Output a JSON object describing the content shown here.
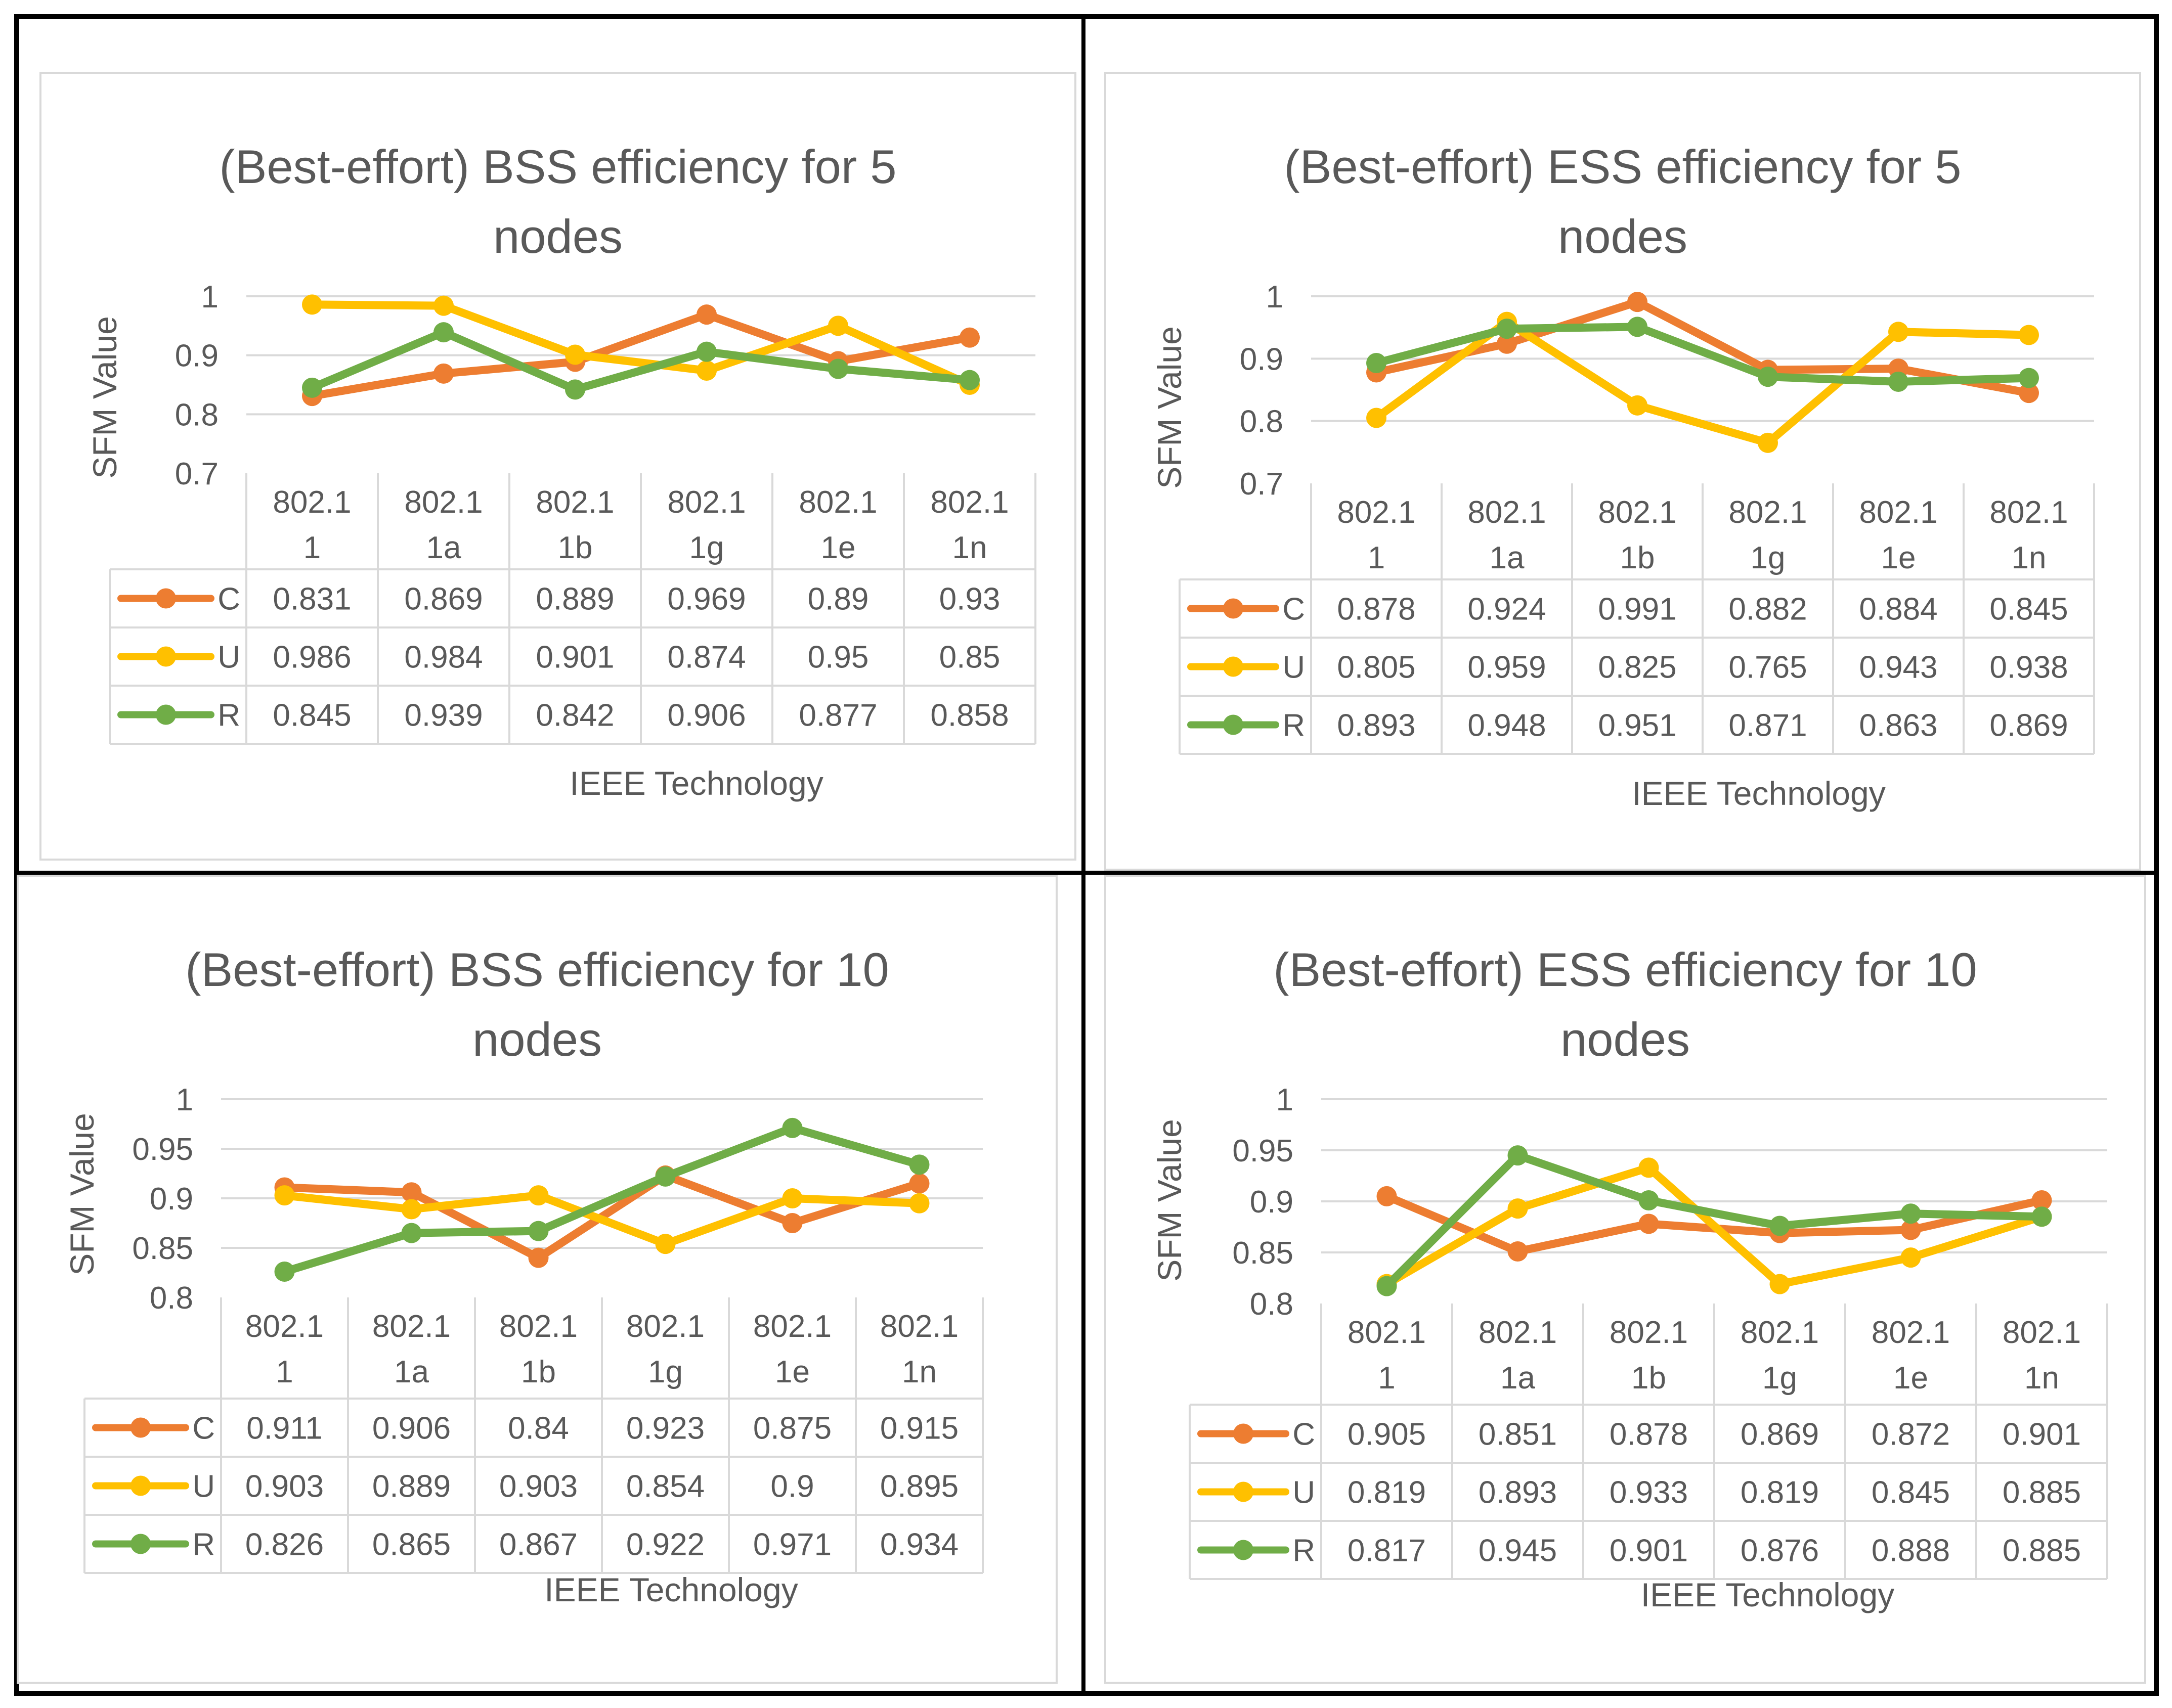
{
  "colors": {
    "C": "#ED7D31",
    "U": "#FFC000",
    "R": "#70AD47",
    "grid": "#D9D9D9",
    "text": "#595959"
  },
  "chart_data": [
    {
      "type": "line",
      "title_lines": [
        "(Best-effort) BSS efficiency for 5",
        "nodes"
      ],
      "xlabel": "IEEE Technology",
      "ylabel": "SFM Value",
      "categories": [
        [
          "802.1",
          "1"
        ],
        [
          "802.1",
          "1a"
        ],
        [
          "802.1",
          "1b"
        ],
        [
          "802.1",
          "1g"
        ],
        [
          "802.1",
          "1e"
        ],
        [
          "802.1",
          "1n"
        ]
      ],
      "ylim": [
        0.7,
        1
      ],
      "yticks": [
        "0.7",
        "0.8",
        "0.9",
        "1"
      ],
      "series": [
        {
          "name": "C",
          "values": [
            "0.831",
            "0.869",
            "0.889",
            "0.969",
            "0.89",
            "0.93"
          ]
        },
        {
          "name": "U",
          "values": [
            "0.986",
            "0.984",
            "0.901",
            "0.874",
            "0.95",
            "0.85"
          ]
        },
        {
          "name": "R",
          "values": [
            "0.845",
            "0.939",
            "0.842",
            "0.906",
            "0.877",
            "0.858"
          ]
        }
      ]
    },
    {
      "type": "line",
      "title_lines": [
        "(Best-effort) ESS efficiency for 5",
        "nodes"
      ],
      "xlabel": "IEEE Technology",
      "ylabel": "SFM Value",
      "categories": [
        [
          "802.1",
          "1"
        ],
        [
          "802.1",
          "1a"
        ],
        [
          "802.1",
          "1b"
        ],
        [
          "802.1",
          "1g"
        ],
        [
          "802.1",
          "1e"
        ],
        [
          "802.1",
          "1n"
        ]
      ],
      "ylim": [
        0.7,
        1
      ],
      "yticks": [
        "0.7",
        "0.8",
        "0.9",
        "1"
      ],
      "series": [
        {
          "name": "C",
          "values": [
            "0.878",
            "0.924",
            "0.991",
            "0.882",
            "0.884",
            "0.845"
          ]
        },
        {
          "name": "U",
          "values": [
            "0.805",
            "0.959",
            "0.825",
            "0.765",
            "0.943",
            "0.938"
          ]
        },
        {
          "name": "R",
          "values": [
            "0.893",
            "0.948",
            "0.951",
            "0.871",
            "0.863",
            "0.869"
          ]
        }
      ]
    },
    {
      "type": "line",
      "title_lines": [
        "(Best-effort) BSS efficiency for 10",
        "nodes"
      ],
      "xlabel": "IEEE Technology",
      "ylabel": "SFM Value",
      "categories": [
        [
          "802.1",
          "1"
        ],
        [
          "802.1",
          "1a"
        ],
        [
          "802.1",
          "1b"
        ],
        [
          "802.1",
          "1g"
        ],
        [
          "802.1",
          "1e"
        ],
        [
          "802.1",
          "1n"
        ]
      ],
      "ylim": [
        0.8,
        1
      ],
      "yticks": [
        "0.8",
        "0.85",
        "0.9",
        "0.95",
        "1"
      ],
      "series": [
        {
          "name": "C",
          "values": [
            "0.911",
            "0.906",
            "0.84",
            "0.923",
            "0.875",
            "0.915"
          ]
        },
        {
          "name": "U",
          "values": [
            "0.903",
            "0.889",
            "0.903",
            "0.854",
            "0.9",
            "0.895"
          ]
        },
        {
          "name": "R",
          "values": [
            "0.826",
            "0.865",
            "0.867",
            "0.922",
            "0.971",
            "0.934"
          ]
        }
      ]
    },
    {
      "type": "line",
      "title_lines": [
        "(Best-effort) ESS efficiency for 10",
        "nodes"
      ],
      "xlabel": "IEEE Technology",
      "ylabel": "SFM Value",
      "categories": [
        [
          "802.1",
          "1"
        ],
        [
          "802.1",
          "1a"
        ],
        [
          "802.1",
          "1b"
        ],
        [
          "802.1",
          "1g"
        ],
        [
          "802.1",
          "1e"
        ],
        [
          "802.1",
          "1n"
        ]
      ],
      "ylim": [
        0.8,
        1
      ],
      "yticks": [
        "0.8",
        "0.85",
        "0.9",
        "0.95",
        "1"
      ],
      "series": [
        {
          "name": "C",
          "values": [
            "0.905",
            "0.851",
            "0.878",
            "0.869",
            "0.872",
            "0.901"
          ]
        },
        {
          "name": "U",
          "values": [
            "0.819",
            "0.893",
            "0.933",
            "0.819",
            "0.845",
            "0.885"
          ]
        },
        {
          "name": "R",
          "values": [
            "0.817",
            "0.945",
            "0.901",
            "0.876",
            "0.888",
            "0.885"
          ]
        }
      ]
    }
  ]
}
